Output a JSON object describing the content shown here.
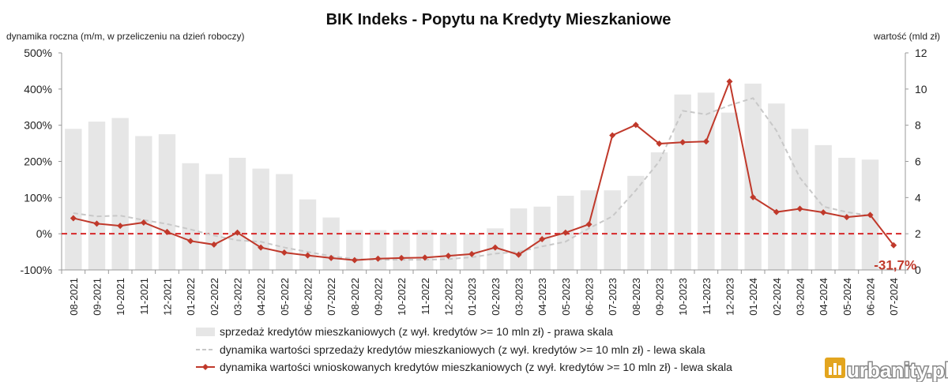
{
  "chart_data": {
    "type": "bar",
    "title": "BIK Indeks - Popytu na Kredyty Mieszkaniowe",
    "ylabel_left": "dynamika roczna (m/m, w przeliczeniu na dzień roboczy)",
    "ylabel_right": "wartość (mld zł)",
    "ylim_left": [
      -100,
      500
    ],
    "yticks_left": [
      "-100%",
      "0%",
      "100%",
      "200%",
      "300%",
      "400%",
      "500%"
    ],
    "ylim_right": [
      0,
      12
    ],
    "yticks_right": [
      "0",
      "2",
      "4",
      "6",
      "8",
      "10",
      "12"
    ],
    "categories": [
      "08-2021",
      "09-2021",
      "10-2021",
      "11-2021",
      "12-2021",
      "01-2022",
      "02-2022",
      "03-2022",
      "04-2022",
      "05-2022",
      "06-2022",
      "07-2022",
      "08-2022",
      "09-2022",
      "10-2022",
      "11-2022",
      "12-2022",
      "01-2023",
      "02-2023",
      "03-2023",
      "04-2023",
      "05-2023",
      "06-2023",
      "07-2023",
      "08-2023",
      "09-2023",
      "10-2023",
      "11-2023",
      "12-2023",
      "01-2024",
      "02-2024",
      "03-2024",
      "04-2024",
      "05-2024",
      "06-2024",
      "07-2024"
    ],
    "series": [
      {
        "name": "sprzedaż kredytów mieszkaniowych (z wył. kredytów >= 10 mln zł) - prawa skala",
        "kind": "bar",
        "axis": "right",
        "color": "#e6e6e6",
        "values": [
          7.8,
          8.2,
          8.4,
          7.4,
          7.5,
          5.9,
          5.3,
          6.2,
          5.6,
          5.3,
          3.9,
          2.9,
          2.2,
          2.2,
          2.2,
          2.2,
          2.0,
          2.0,
          2.3,
          3.4,
          3.5,
          4.1,
          4.4,
          4.4,
          5.2,
          6.5,
          9.7,
          9.8,
          8.7,
          10.3,
          9.2,
          7.8,
          6.9,
          6.2,
          6.1,
          0
        ],
        "note": "07-2024 bar not shown"
      },
      {
        "name": "dynamika wartości sprzedaży kredytów mieszkaniowych (z wył. kredytów >= 10 mln zł) - lewa skala",
        "kind": "line",
        "axis": "left",
        "color": "#c8c8c8",
        "dashed": true,
        "values": [
          57,
          48,
          50,
          38,
          27,
          12,
          -5,
          -18,
          -22,
          -38,
          -50,
          -62,
          -70,
          -72,
          -72,
          -72,
          -70,
          -65,
          -55,
          -50,
          -35,
          -22,
          15,
          48,
          120,
          200,
          340,
          330,
          355,
          375,
          285,
          155,
          75,
          60,
          50,
          null
        ]
      },
      {
        "name": "dynamika wartości wnioskowanych kredytów mieszkaniowych (z wył. kredytów >= 10 mln zł) - lewa skala",
        "kind": "line",
        "axis": "left",
        "color": "#c0392b",
        "marker": "diamond",
        "values": [
          43,
          28,
          22,
          31,
          5,
          -20,
          -30,
          3,
          -38,
          -52,
          -60,
          -67,
          -73,
          -69,
          -67,
          -66,
          -61,
          -56,
          -38,
          -58,
          -15,
          3,
          26,
          272,
          301,
          249,
          253,
          255,
          421,
          101,
          60,
          69,
          59,
          46,
          52,
          -31.7
        ]
      }
    ],
    "reference_line": {
      "value": 0,
      "axis": "left",
      "style": "dashed",
      "color": "#d62728"
    },
    "annotation": "-31,7%",
    "grid": false,
    "legend_position": "bottom"
  },
  "watermark": {
    "text": "urbanity.pl"
  }
}
